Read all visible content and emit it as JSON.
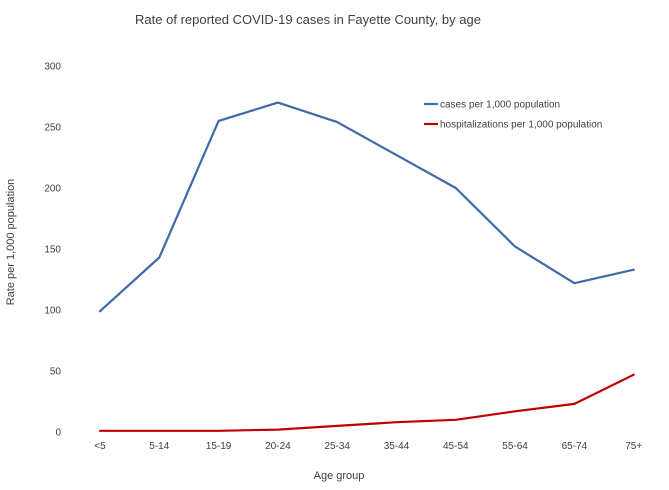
{
  "chart_data": {
    "type": "line",
    "title": "Rate of reported COVID-19 cases in Fayette County, by age",
    "xlabel": "Age group",
    "ylabel": "Rate per 1,000 population",
    "categories": [
      "<5",
      "5-14",
      "15-19",
      "20-24",
      "25-34",
      "35-44",
      "45-54",
      "55-64",
      "65-74",
      "75+"
    ],
    "ylim": [
      0,
      300
    ],
    "yticks": [
      "0",
      "50",
      "100",
      "150",
      "200",
      "250",
      "300"
    ],
    "grid": false,
    "legend_position": "top-right",
    "series": [
      {
        "name": "cases per 1,000 population",
        "color": "#4169aa",
        "values": [
          99,
          143,
          255,
          270,
          254,
          227,
          200,
          152,
          122,
          133
        ]
      },
      {
        "name": "hospitalizations per 1,000 population",
        "color": "#c00000",
        "values": [
          1,
          1,
          1,
          2,
          5,
          8,
          10,
          17,
          23,
          47
        ]
      }
    ]
  }
}
